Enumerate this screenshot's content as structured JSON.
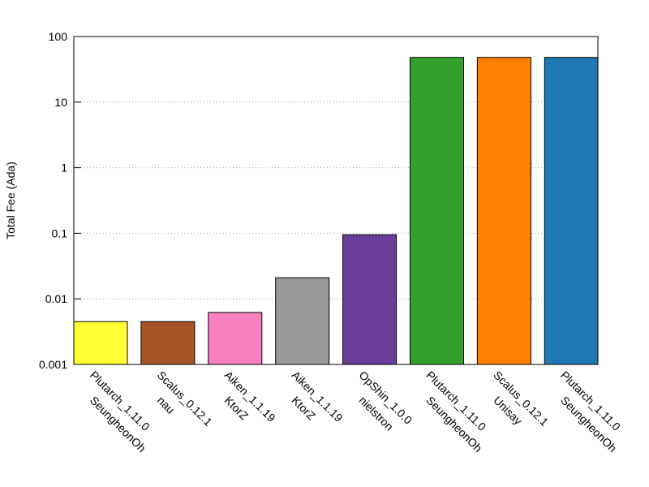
{
  "chart_data": {
    "type": "bar",
    "y_label": "Total Fee (Ada)",
    "categories": [
      [
        "Plutarch_1.11.0",
        "SeungheonOh"
      ],
      [
        "Scalus_0.12.1",
        "nau"
      ],
      [
        "Aiken_1.1.19",
        "KtorZ"
      ],
      [
        "Aiken_1.1.19",
        "KtorZ"
      ],
      [
        "OpShin_1.0.0",
        "nielstron"
      ],
      [
        "Plutarch_1.11.0",
        "SeungheonOh"
      ],
      [
        "Scalus_0.12.1",
        "Unisay"
      ],
      [
        "Plutarch_1.11.0",
        "SeungheonOh"
      ]
    ],
    "values": [
      0.0045,
      0.0045,
      0.0062,
      0.021,
      0.095,
      48,
      48,
      48
    ],
    "colors": [
      "#ffff33",
      "#a65628",
      "#f781bf",
      "#999999",
      "#6a3d9a",
      "#33a02c",
      "#ff7f00",
      "#1f78b4"
    ],
    "log_scale": true,
    "ylim": [
      0.001,
      100
    ],
    "yticks": [
      0.001,
      0.01,
      0.1,
      1,
      10,
      100
    ],
    "grid": true
  }
}
